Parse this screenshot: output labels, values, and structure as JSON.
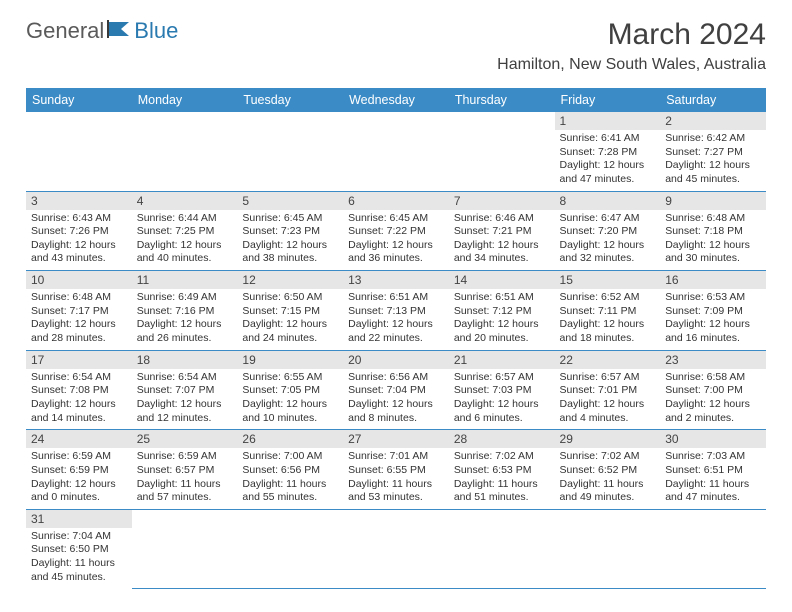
{
  "logo": {
    "part1": "General",
    "part2": "Blue"
  },
  "title": "March 2024",
  "location": "Hamilton, New South Wales, Australia",
  "colors": {
    "header_bg": "#3b8bc6",
    "header_text": "#ffffff",
    "daynum_bg": "#e6e6e6",
    "row_border": "#3b8bc6",
    "text": "#333333",
    "logo_gray": "#5a5a5a",
    "logo_blue": "#2a7ab0"
  },
  "typography": {
    "title_fontsize": 30,
    "location_fontsize": 16,
    "dayheader_fontsize": 12.5,
    "cell_fontsize": 10.5
  },
  "day_headers": [
    "Sunday",
    "Monday",
    "Tuesday",
    "Wednesday",
    "Thursday",
    "Friday",
    "Saturday"
  ],
  "weeks": [
    [
      null,
      null,
      null,
      null,
      null,
      {
        "n": "1",
        "sr": "6:41 AM",
        "ss": "7:28 PM",
        "dh": "12",
        "dm": "47"
      },
      {
        "n": "2",
        "sr": "6:42 AM",
        "ss": "7:27 PM",
        "dh": "12",
        "dm": "45"
      }
    ],
    [
      {
        "n": "3",
        "sr": "6:43 AM",
        "ss": "7:26 PM",
        "dh": "12",
        "dm": "43"
      },
      {
        "n": "4",
        "sr": "6:44 AM",
        "ss": "7:25 PM",
        "dh": "12",
        "dm": "40"
      },
      {
        "n": "5",
        "sr": "6:45 AM",
        "ss": "7:23 PM",
        "dh": "12",
        "dm": "38"
      },
      {
        "n": "6",
        "sr": "6:45 AM",
        "ss": "7:22 PM",
        "dh": "12",
        "dm": "36"
      },
      {
        "n": "7",
        "sr": "6:46 AM",
        "ss": "7:21 PM",
        "dh": "12",
        "dm": "34"
      },
      {
        "n": "8",
        "sr": "6:47 AM",
        "ss": "7:20 PM",
        "dh": "12",
        "dm": "32"
      },
      {
        "n": "9",
        "sr": "6:48 AM",
        "ss": "7:18 PM",
        "dh": "12",
        "dm": "30"
      }
    ],
    [
      {
        "n": "10",
        "sr": "6:48 AM",
        "ss": "7:17 PM",
        "dh": "12",
        "dm": "28"
      },
      {
        "n": "11",
        "sr": "6:49 AM",
        "ss": "7:16 PM",
        "dh": "12",
        "dm": "26"
      },
      {
        "n": "12",
        "sr": "6:50 AM",
        "ss": "7:15 PM",
        "dh": "12",
        "dm": "24"
      },
      {
        "n": "13",
        "sr": "6:51 AM",
        "ss": "7:13 PM",
        "dh": "12",
        "dm": "22"
      },
      {
        "n": "14",
        "sr": "6:51 AM",
        "ss": "7:12 PM",
        "dh": "12",
        "dm": "20"
      },
      {
        "n": "15",
        "sr": "6:52 AM",
        "ss": "7:11 PM",
        "dh": "12",
        "dm": "18"
      },
      {
        "n": "16",
        "sr": "6:53 AM",
        "ss": "7:09 PM",
        "dh": "12",
        "dm": "16"
      }
    ],
    [
      {
        "n": "17",
        "sr": "6:54 AM",
        "ss": "7:08 PM",
        "dh": "12",
        "dm": "14"
      },
      {
        "n": "18",
        "sr": "6:54 AM",
        "ss": "7:07 PM",
        "dh": "12",
        "dm": "12"
      },
      {
        "n": "19",
        "sr": "6:55 AM",
        "ss": "7:05 PM",
        "dh": "12",
        "dm": "10"
      },
      {
        "n": "20",
        "sr": "6:56 AM",
        "ss": "7:04 PM",
        "dh": "12",
        "dm": "8"
      },
      {
        "n": "21",
        "sr": "6:57 AM",
        "ss": "7:03 PM",
        "dh": "12",
        "dm": "6"
      },
      {
        "n": "22",
        "sr": "6:57 AM",
        "ss": "7:01 PM",
        "dh": "12",
        "dm": "4"
      },
      {
        "n": "23",
        "sr": "6:58 AM",
        "ss": "7:00 PM",
        "dh": "12",
        "dm": "2"
      }
    ],
    [
      {
        "n": "24",
        "sr": "6:59 AM",
        "ss": "6:59 PM",
        "dh": "12",
        "dm": "0"
      },
      {
        "n": "25",
        "sr": "6:59 AM",
        "ss": "6:57 PM",
        "dh": "11",
        "dm": "57"
      },
      {
        "n": "26",
        "sr": "7:00 AM",
        "ss": "6:56 PM",
        "dh": "11",
        "dm": "55"
      },
      {
        "n": "27",
        "sr": "7:01 AM",
        "ss": "6:55 PM",
        "dh": "11",
        "dm": "53"
      },
      {
        "n": "28",
        "sr": "7:02 AM",
        "ss": "6:53 PM",
        "dh": "11",
        "dm": "51"
      },
      {
        "n": "29",
        "sr": "7:02 AM",
        "ss": "6:52 PM",
        "dh": "11",
        "dm": "49"
      },
      {
        "n": "30",
        "sr": "7:03 AM",
        "ss": "6:51 PM",
        "dh": "11",
        "dm": "47"
      }
    ],
    [
      {
        "n": "31",
        "sr": "7:04 AM",
        "ss": "6:50 PM",
        "dh": "11",
        "dm": "45"
      },
      null,
      null,
      null,
      null,
      null,
      null
    ]
  ],
  "labels": {
    "sunrise": "Sunrise:",
    "sunset": "Sunset:",
    "daylight_prefix": "Daylight:",
    "hours_word": "hours",
    "and_word": "and",
    "minutes_word": "minutes."
  }
}
